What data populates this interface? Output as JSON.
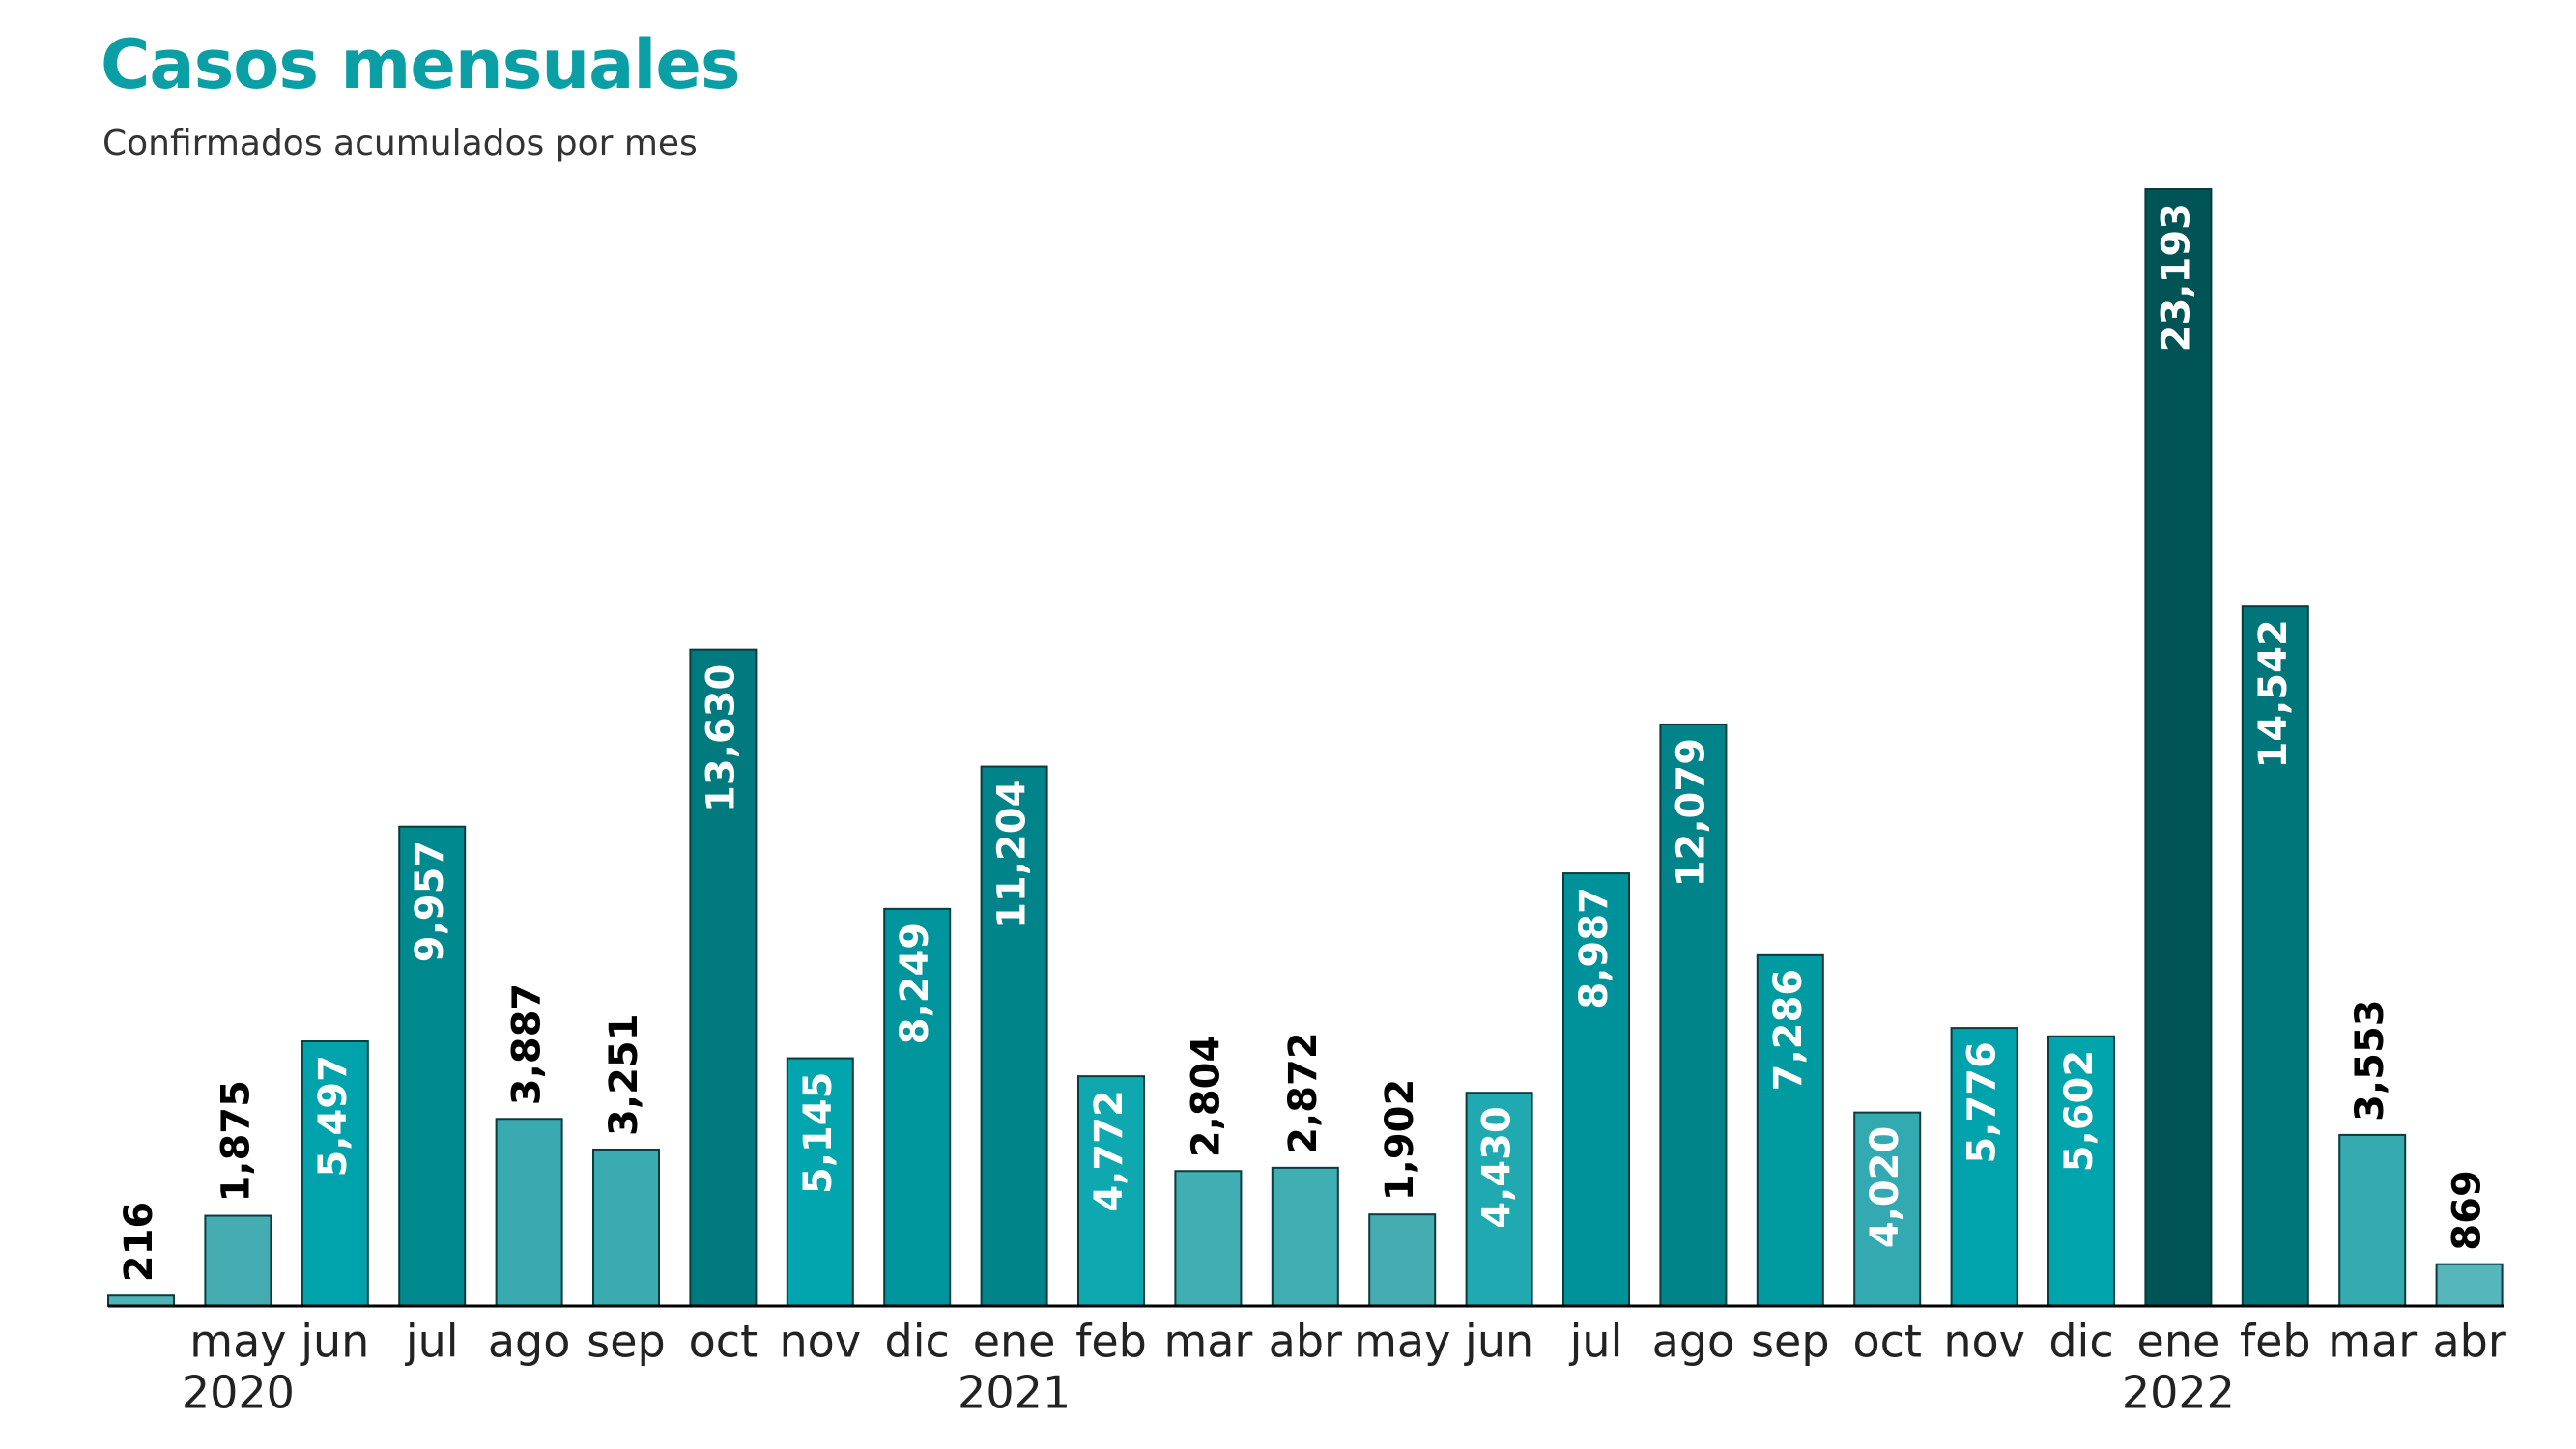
{
  "chart_data": {
    "type": "bar",
    "title": "Casos mensuales",
    "subtitle": "Confirmados acumulados por mes",
    "categories": [
      null,
      "may",
      "jun",
      "jul",
      "ago",
      "sep",
      "oct",
      "nov",
      "dic",
      "ene",
      "feb",
      "mar",
      "abr",
      "may",
      "jun",
      "jul",
      "ago",
      "sep",
      "oct",
      "nov",
      "dic",
      "ene",
      "feb",
      "mar",
      "abr"
    ],
    "category_groups": [
      {
        "name": "2020",
        "start": 1
      },
      {
        "name": "2021",
        "start": 9
      },
      {
        "name": "2022",
        "start": 21
      }
    ],
    "values": [
      216,
      1875,
      5497,
      9957,
      3887,
      3251,
      13630,
      5145,
      8249,
      11204,
      4772,
      2804,
      2872,
      1902,
      4430,
      8987,
      12079,
      7286,
      4020,
      5776,
      5602,
      23193,
      14542,
      3553,
      869
    ],
    "value_labels": [
      "216",
      "1,875",
      "5,497",
      "9,957",
      "3,887",
      "3,251",
      "13,630",
      "5,145",
      "8,249",
      "11,204",
      "4,772",
      "2,804",
      "2,872",
      "1,902",
      "4,430",
      "8,987",
      "12,079",
      "7,286",
      "4,020",
      "5,776",
      "5,602",
      "23,193",
      "14,542",
      "3,553",
      "869"
    ],
    "colors": [
      "#4fb3b8",
      "#45adb2",
      "#00a3ab",
      "#008a90",
      "#39aab0",
      "#3aabb1",
      "#007a7f",
      "#00a5ad",
      "#00959c",
      "#00848a",
      "#10a8b0",
      "#40aeb3",
      "#40aeb3",
      "#45adb2",
      "#20a9b0",
      "#00929a",
      "#008389",
      "#009aa1",
      "#33aab1",
      "#00a3ab",
      "#00a4ac",
      "#005456",
      "#00767b",
      "#35aab0",
      "#55b6bb"
    ]
  }
}
